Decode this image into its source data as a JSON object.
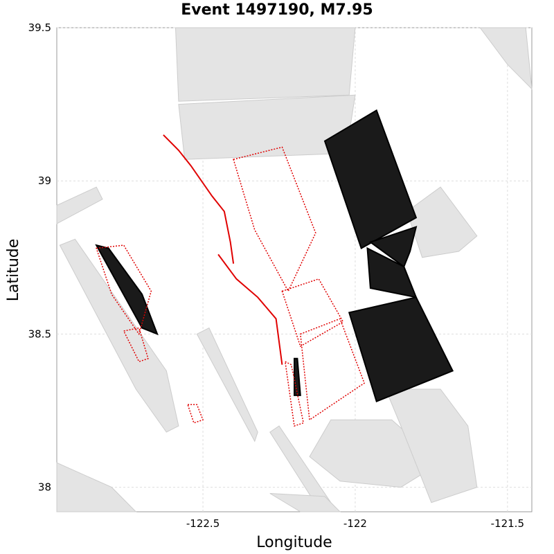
{
  "chart_data": {
    "type": "map",
    "title": "Event 1497190, M7.95",
    "xlabel": "Longitude",
    "ylabel": "Latitude",
    "xlim": [
      -122.98,
      -121.42
    ],
    "ylim": [
      37.92,
      39.5
    ],
    "xticks": [
      -122.5,
      -122.0,
      -121.5
    ],
    "xtick_labels": [
      "-122.5",
      "-122",
      "-121.5"
    ],
    "yticks": [
      38.0,
      38.5,
      39.0,
      39.5
    ],
    "ytick_labels": [
      "38",
      "38.5",
      "39",
      "39.5"
    ],
    "grid": true,
    "colors": {
      "inactive_mesh": "#cccccc",
      "ruptured_mesh": "#000000",
      "section_outline": "#e00000",
      "trace_lines": "#c8c8c8"
    },
    "gray_fault_patches": [
      [
        [
          -122.59,
          39.5
        ],
        [
          -122.0,
          39.5
        ],
        [
          -122.02,
          39.28
        ],
        [
          -122.58,
          39.26
        ]
      ],
      [
        [
          -122.58,
          39.25
        ],
        [
          -122.0,
          39.28
        ],
        [
          -122.03,
          39.09
        ],
        [
          -122.56,
          39.07
        ]
      ],
      [
        [
          -121.83,
          38.9
        ],
        [
          -121.72,
          38.98
        ],
        [
          -121.6,
          38.82
        ],
        [
          -121.66,
          38.77
        ],
        [
          -121.78,
          38.75
        ]
      ],
      [
        [
          -121.59,
          39.5
        ],
        [
          -121.44,
          39.5
        ],
        [
          -121.42,
          39.3
        ],
        [
          -121.5,
          39.38
        ]
      ],
      [
        [
          -122.98,
          38.92
        ],
        [
          -122.85,
          38.98
        ],
        [
          -122.83,
          38.94
        ],
        [
          -122.98,
          38.86
        ]
      ],
      [
        [
          -122.97,
          38.79
        ],
        [
          -122.92,
          38.81
        ],
        [
          -122.62,
          38.38
        ],
        [
          -122.58,
          38.2
        ],
        [
          -122.62,
          38.18
        ],
        [
          -122.72,
          38.32
        ]
      ],
      [
        [
          -122.52,
          38.5
        ],
        [
          -122.48,
          38.52
        ],
        [
          -122.32,
          38.18
        ],
        [
          -122.33,
          38.15
        ]
      ],
      [
        [
          -122.28,
          38.18
        ],
        [
          -122.25,
          38.2
        ],
        [
          -122.08,
          37.95
        ],
        [
          -122.12,
          37.93
        ]
      ],
      [
        [
          -122.08,
          38.22
        ],
        [
          -121.88,
          38.22
        ],
        [
          -121.72,
          38.08
        ],
        [
          -121.85,
          38.0
        ],
        [
          -122.05,
          38.02
        ],
        [
          -122.15,
          38.1
        ]
      ],
      [
        [
          -121.9,
          38.32
        ],
        [
          -121.72,
          38.32
        ],
        [
          -121.63,
          38.2
        ],
        [
          -121.6,
          38.0
        ],
        [
          -121.75,
          37.95
        ],
        [
          -121.85,
          38.2
        ]
      ],
      [
        [
          -122.98,
          38.08
        ],
        [
          -122.8,
          38.0
        ],
        [
          -122.72,
          37.92
        ],
        [
          -122.98,
          37.92
        ]
      ],
      [
        [
          -122.28,
          37.98
        ],
        [
          -122.18,
          37.92
        ],
        [
          -122.05,
          37.92
        ],
        [
          -122.1,
          37.97
        ]
      ]
    ],
    "black_fault_patches": [
      [
        [
          -122.1,
          39.13
        ],
        [
          -121.93,
          39.23
        ],
        [
          -121.8,
          38.88
        ],
        [
          -121.98,
          38.78
        ]
      ],
      [
        [
          -121.95,
          38.8
        ],
        [
          -121.8,
          38.85
        ],
        [
          -121.82,
          38.77
        ],
        [
          -121.84,
          38.72
        ]
      ],
      [
        [
          -121.96,
          38.78
        ],
        [
          -121.84,
          38.72
        ],
        [
          -121.8,
          38.62
        ],
        [
          -121.95,
          38.65
        ]
      ],
      [
        [
          -122.02,
          38.57
        ],
        [
          -121.8,
          38.62
        ],
        [
          -121.68,
          38.38
        ],
        [
          -121.93,
          38.28
        ]
      ],
      [
        [
          -122.85,
          38.79
        ],
        [
          -122.81,
          38.78
        ],
        [
          -122.7,
          38.63
        ],
        [
          -122.65,
          38.5
        ],
        [
          -122.7,
          38.52
        ]
      ],
      [
        [
          -122.2,
          38.42
        ],
        [
          -122.19,
          38.42
        ],
        [
          -122.18,
          38.3
        ],
        [
          -122.2,
          38.3
        ]
      ]
    ],
    "red_sections": [
      [
        [
          -122.4,
          39.07
        ],
        [
          -122.24,
          39.11
        ],
        [
          -122.13,
          38.83
        ],
        [
          -122.22,
          38.64
        ],
        [
          -122.33,
          38.84
        ]
      ],
      [
        [
          -122.24,
          38.64
        ],
        [
          -122.12,
          38.68
        ],
        [
          -122.04,
          38.54
        ],
        [
          -122.18,
          38.46
        ]
      ],
      [
        [
          -122.18,
          38.5
        ],
        [
          -122.05,
          38.55
        ],
        [
          -121.97,
          38.34
        ],
        [
          -122.15,
          38.22
        ]
      ],
      [
        [
          -122.85,
          38.78
        ],
        [
          -122.76,
          38.79
        ],
        [
          -122.67,
          38.64
        ],
        [
          -122.71,
          38.5
        ],
        [
          -122.8,
          38.63
        ]
      ],
      [
        [
          -122.76,
          38.51
        ],
        [
          -122.71,
          38.52
        ],
        [
          -122.68,
          38.42
        ],
        [
          -122.71,
          38.41
        ]
      ],
      [
        [
          -122.55,
          38.27
        ],
        [
          -122.52,
          38.27
        ],
        [
          -122.5,
          38.22
        ],
        [
          -122.53,
          38.21
        ]
      ],
      [
        [
          -122.23,
          38.41
        ],
        [
          -122.21,
          38.4
        ],
        [
          -122.17,
          38.21
        ],
        [
          -122.2,
          38.2
        ]
      ]
    ],
    "red_trace": [
      [
        -122.63,
        39.15
      ],
      [
        -122.58,
        39.1
      ],
      [
        -122.54,
        39.05
      ],
      [
        -122.47,
        38.95
      ],
      [
        -122.43,
        38.9
      ],
      [
        -122.41,
        38.8
      ],
      [
        -122.4,
        38.73
      ]
    ],
    "red_trace_2": [
      [
        -122.45,
        38.76
      ],
      [
        -122.39,
        38.68
      ],
      [
        -122.32,
        38.62
      ],
      [
        -122.26,
        38.55
      ],
      [
        -122.24,
        38.4
      ]
    ]
  }
}
